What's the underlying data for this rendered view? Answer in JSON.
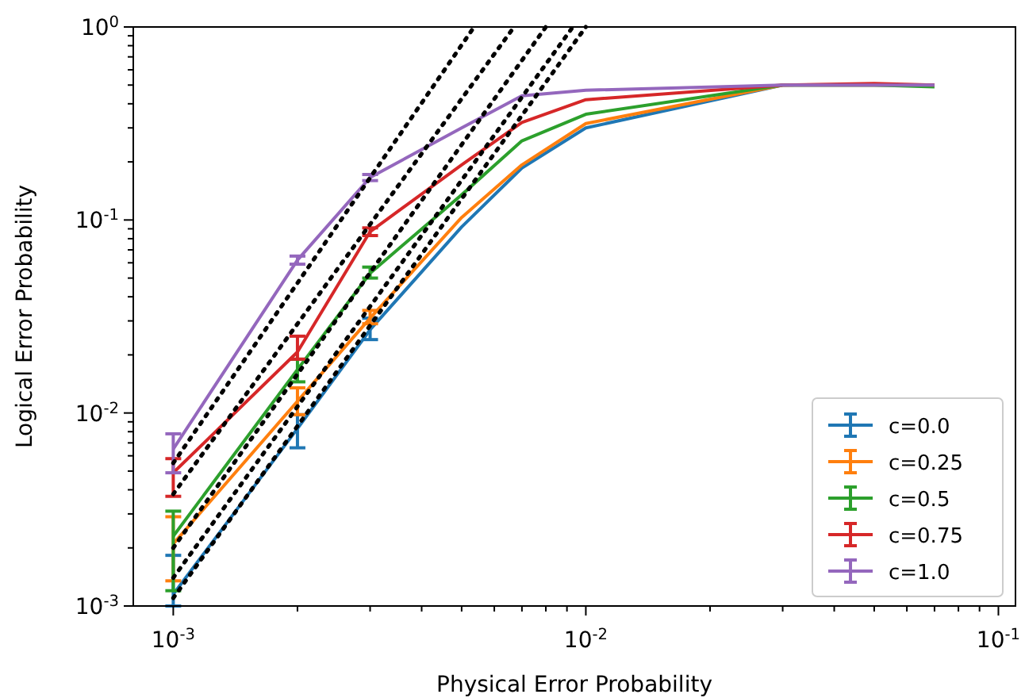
{
  "chart_data": {
    "type": "line",
    "xlabel": "Physical Error Probability",
    "ylabel": "Logical Error Probability",
    "log": "xy",
    "legend": "bottom right",
    "x": [
      0.001,
      0.002,
      0.003,
      0.005,
      0.007,
      0.01,
      0.03,
      0.05,
      0.07
    ],
    "xlim": [
      0.0008,
      0.11
    ],
    "ylim": [
      0.001,
      1
    ],
    "xticks": [
      {
        "value": 0.001,
        "label": "10$^{-3}$"
      },
      {
        "value": 0.002,
        "label": null
      },
      {
        "value": 0.003,
        "label": null
      },
      {
        "value": 0.004,
        "label": null
      },
      {
        "value": 0.005,
        "label": null
      },
      {
        "value": 0.006,
        "label": null
      },
      {
        "value": 0.007,
        "label": null
      },
      {
        "value": 0.008,
        "label": null
      },
      {
        "value": 0.009,
        "label": null
      },
      {
        "value": 0.01,
        "label": "10$^{-2}$"
      },
      {
        "value": 0.02,
        "label": null
      },
      {
        "value": 0.03,
        "label": null
      },
      {
        "value": 0.04,
        "label": null
      },
      {
        "value": 0.05,
        "label": null
      },
      {
        "value": 0.06,
        "label": null
      },
      {
        "value": 0.07,
        "label": null
      },
      {
        "value": 0.08,
        "label": null
      },
      {
        "value": 0.09,
        "label": null
      },
      {
        "value": 0.1,
        "label": "10$^{-1}$"
      }
    ],
    "yticks": [
      {
        "value": 0.001,
        "label": "10$^{-3}$"
      },
      {
        "value": 0.002,
        "label": null
      },
      {
        "value": 0.003,
        "label": null
      },
      {
        "value": 0.004,
        "label": null
      },
      {
        "value": 0.005,
        "label": null
      },
      {
        "value": 0.006,
        "label": null
      },
      {
        "value": 0.007,
        "label": null
      },
      {
        "value": 0.008,
        "label": null
      },
      {
        "value": 0.009,
        "label": null
      },
      {
        "value": 0.01,
        "label": "10$^{-2}$"
      },
      {
        "value": 0.02,
        "label": null
      },
      {
        "value": 0.03,
        "label": null
      },
      {
        "value": 0.04,
        "label": null
      },
      {
        "value": 0.05,
        "label": null
      },
      {
        "value": 0.06,
        "label": null
      },
      {
        "value": 0.07,
        "label": null
      },
      {
        "value": 0.08,
        "label": null
      },
      {
        "value": 0.09,
        "label": null
      },
      {
        "value": 0.1,
        "label": "10$^{-1}$"
      },
      {
        "value": 0.2,
        "label": null
      },
      {
        "value": 0.3,
        "label": null
      },
      {
        "value": 0.4,
        "label": null
      },
      {
        "value": 0.5,
        "label": null
      },
      {
        "value": 0.6,
        "label": null
      },
      {
        "value": 0.7,
        "label": null
      },
      {
        "value": 0.8,
        "label": null
      },
      {
        "value": 0.9,
        "label": null
      },
      {
        "value": 1,
        "label": "10$^{0}$"
      }
    ],
    "series": [
      {
        "name": "c=0.0",
        "color": "#1f77b4",
        "values": [
          0.00115,
          0.0083,
          0.027,
          0.092,
          0.186,
          0.3,
          0.5,
          0.5,
          0.5
        ],
        "errors": [
          [
            0.001,
            0.00183
          ],
          [
            0.0066,
            0.0098
          ],
          [
            0.024,
            0.031
          ],
          null,
          null,
          null,
          null,
          null,
          null
        ]
      },
      {
        "name": "c=0.25",
        "color": "#ff7f0e",
        "values": [
          0.0021,
          0.0115,
          0.031,
          0.103,
          0.193,
          0.316,
          0.5,
          0.5,
          0.5
        ],
        "errors": [
          [
            0.00135,
            0.0029
          ],
          [
            0.0098,
            0.0135
          ],
          [
            0.029,
            0.034
          ],
          null,
          null,
          null,
          null,
          null,
          null
        ]
      },
      {
        "name": "c=0.5",
        "color": "#2ca02c",
        "values": [
          0.0023,
          0.0168,
          0.053,
          0.135,
          0.257,
          0.353,
          0.5,
          0.5,
          0.49
        ],
        "errors": [
          [
            0.0012,
            0.0031
          ],
          [
            0.0145,
            0.019
          ],
          [
            0.05,
            0.057
          ],
          null,
          null,
          null,
          null,
          null,
          null
        ]
      },
      {
        "name": "c=0.75",
        "color": "#d62728",
        "values": [
          0.0049,
          0.0207,
          0.087,
          0.193,
          0.32,
          0.42,
          0.5,
          0.51,
          0.5
        ],
        "errors": [
          [
            0.0037,
            0.0058
          ],
          [
            0.019,
            0.025
          ],
          [
            0.083,
            0.091
          ],
          null,
          null,
          null,
          null,
          null,
          null
        ]
      },
      {
        "name": "c=1.0",
        "color": "#9467bd",
        "values": [
          0.0065,
          0.062,
          0.166,
          0.3,
          0.44,
          0.47,
          0.5,
          0.5,
          0.5
        ],
        "errors": [
          [
            0.0049,
            0.0078
          ],
          [
            0.059,
            0.065
          ],
          [
            0.16,
            0.172
          ],
          null,
          null,
          null,
          null,
          null,
          null
        ]
      },
      {
        "type": "line",
        "color": "#000000",
        "line_style": "dotted",
        "x": [
          0.001,
          0.00536
        ],
        "values": [
          0.0055,
          1
        ]
      },
      {
        "type": "line",
        "color": "#000000",
        "line_style": "dotted",
        "x": [
          0.001,
          0.0067
        ],
        "values": [
          0.0038,
          1
        ]
      },
      {
        "type": "line",
        "color": "#000000",
        "line_style": "dotted",
        "x": [
          0.001,
          0.008
        ],
        "values": [
          0.002,
          1
        ]
      },
      {
        "type": "line",
        "color": "#000000",
        "line_style": "dotted",
        "x": [
          0.001,
          0.0093
        ],
        "values": [
          0.0014,
          1
        ]
      },
      {
        "type": "line",
        "color": "#000000",
        "line_style": "dotted",
        "x": [
          0.001,
          0.01
        ],
        "values": [
          0.0011,
          1
        ]
      }
    ]
  }
}
